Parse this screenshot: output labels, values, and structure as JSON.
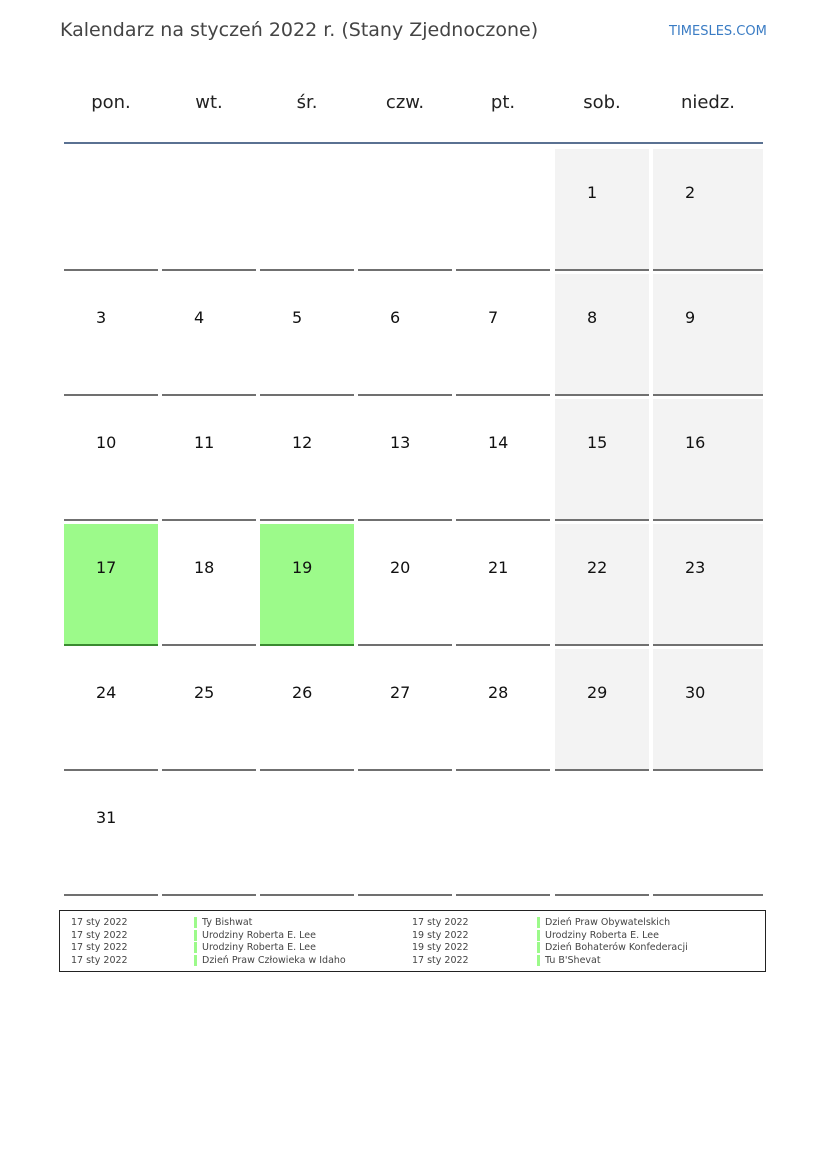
{
  "title": "Kalendarz na styczeń 2022 r. (Stany Zjednoczone)",
  "brand": "TIMESLES.COM",
  "colors": {
    "weekend": "#f3f3f3",
    "holiday": "#9cfa8a",
    "header_line": "#5a7192"
  },
  "weekdays": [
    "pon.",
    "wt.",
    "śr.",
    "czw.",
    "pt.",
    "sob.",
    "niedz."
  ],
  "weeks": [
    [
      "",
      "",
      "",
      "",
      "",
      "1",
      "2"
    ],
    [
      "3",
      "4",
      "5",
      "6",
      "7",
      "8",
      "9"
    ],
    [
      "10",
      "11",
      "12",
      "13",
      "14",
      "15",
      "16"
    ],
    [
      "17",
      "18",
      "19",
      "20",
      "21",
      "22",
      "23"
    ],
    [
      "24",
      "25",
      "26",
      "27",
      "28",
      "29",
      "30"
    ],
    [
      "31",
      "",
      "",
      "",
      "",
      "",
      ""
    ]
  ],
  "highlighted_days": [
    "17",
    "19"
  ],
  "holidays": [
    {
      "date": "17 sty 2022",
      "name": "Ty Bishwat"
    },
    {
      "date": "17 sty 2022",
      "name": "Urodziny Roberta E. Lee"
    },
    {
      "date": "17 sty 2022",
      "name": "Urodziny Roberta E. Lee"
    },
    {
      "date": "17 sty 2022",
      "name": "Dzień Praw Człowieka w Idaho"
    },
    {
      "date": "17 sty 2022",
      "name": "Dzień Praw Obywatelskich"
    },
    {
      "date": "19 sty 2022",
      "name": "Urodziny Roberta E. Lee"
    },
    {
      "date": "19 sty 2022",
      "name": "Dzień Bohaterów Konfederacji"
    },
    {
      "date": "17 sty 2022",
      "name": "Tu B'Shevat"
    }
  ]
}
